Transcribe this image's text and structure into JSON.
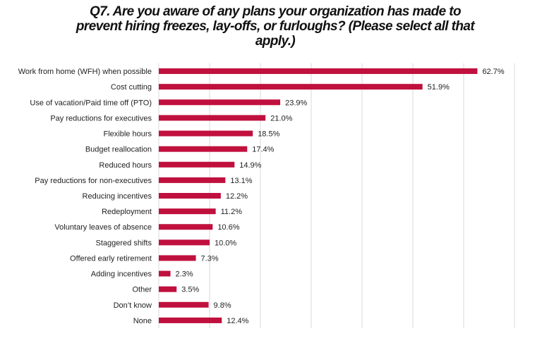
{
  "chart_data": {
    "type": "bar",
    "orientation": "horizontal",
    "title": "Q7. Are you aware of any plans your organization has made to prevent hiring freezes, lay-offs, or furloughs? (Please select all that apply.)",
    "xlabel": "",
    "ylabel": "",
    "xlim": [
      0,
      70
    ],
    "grid_step": 10,
    "grid": true,
    "legend": "none",
    "bar_color": "#c0103e",
    "grid_color": "#d9d9d9",
    "categories": [
      "Work from home (WFH) when possible",
      "Cost cutting",
      "Use of vacation/Paid time off (PTO)",
      "Pay reductions for executives",
      "Flexible hours",
      "Budget reallocation",
      "Reduced hours",
      "Pay reductions for non-executives",
      "Reducing incentives",
      "Redeployment",
      "Voluntary leaves of absence",
      "Staggered shifts",
      "Offered early retirement",
      "Adding incentives",
      "Other",
      "Don’t know",
      "None"
    ],
    "values": [
      62.7,
      51.9,
      23.9,
      21.0,
      18.5,
      17.4,
      14.9,
      13.1,
      12.2,
      11.2,
      10.6,
      10.0,
      7.3,
      2.3,
      3.5,
      9.8,
      12.4
    ],
    "labels": [
      "62.7%",
      "51.9%",
      "23.9%",
      "21.0%",
      "18.5%",
      "17.4%",
      "14.9%",
      "13.1%",
      "12.2%",
      "11.2%",
      "10.6%",
      "10.0%",
      "7.3%",
      "2.3%",
      "3.5%",
      "9.8%",
      "12.4%"
    ]
  }
}
